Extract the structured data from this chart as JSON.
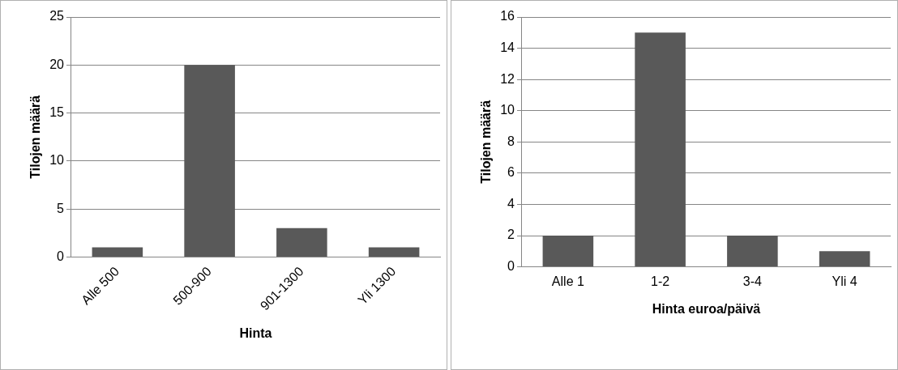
{
  "chart_data": [
    {
      "type": "bar",
      "xlabel": "Hinta",
      "ylabel": "Tilojen määrä",
      "categories": [
        "Alle 500",
        "500-900",
        "901-1300",
        "Yli 1300"
      ],
      "values": [
        1,
        20,
        3,
        1
      ],
      "color": "#595959",
      "ylim": [
        0,
        25
      ],
      "yticks": [
        0,
        5,
        10,
        15,
        20,
        25
      ],
      "grid": "y"
    },
    {
      "type": "bar",
      "xlabel": "Hinta euroa/päivä",
      "ylabel": "Tilojen määrä",
      "categories": [
        "Alle 1",
        "1-2",
        "3-4",
        "Yli 4"
      ],
      "values": [
        2,
        15,
        2,
        1
      ],
      "color": "#595959",
      "ylim": [
        0,
        16
      ],
      "yticks": [
        0,
        2,
        4,
        6,
        8,
        10,
        12,
        14,
        16
      ],
      "grid": "y"
    }
  ]
}
